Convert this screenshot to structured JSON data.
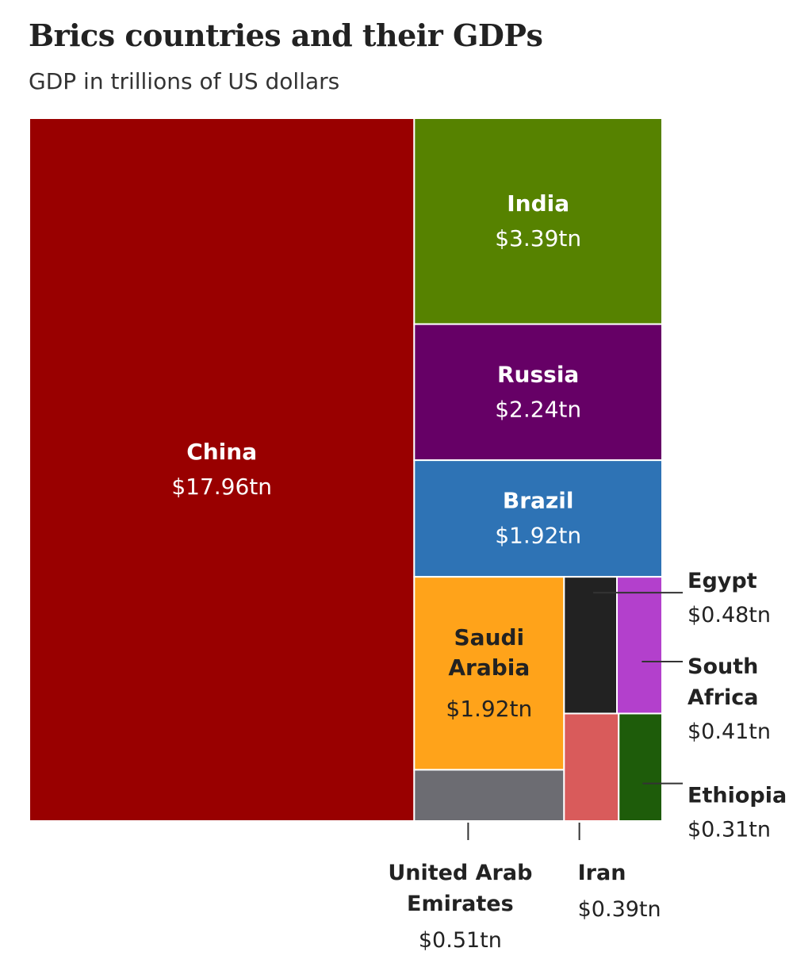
{
  "header": {
    "title": "Brics countries and their GDPs",
    "subtitle": "GDP in trillions of US dollars"
  },
  "chart_data": {
    "type": "treemap",
    "title": "Brics countries and their GDPs",
    "subtitle": "GDP in trillions of US dollars",
    "unit": "trillions of US dollars",
    "series": [
      {
        "name": "China",
        "value": 17.96,
        "label": "$17.96tn",
        "color": "#990000"
      },
      {
        "name": "India",
        "value": 3.39,
        "label": "$3.39tn",
        "color": "#568200"
      },
      {
        "name": "Russia",
        "value": 2.24,
        "label": "$2.24tn",
        "color": "#660066"
      },
      {
        "name": "Brazil",
        "value": 1.92,
        "label": "$1.92tn",
        "color": "#2e73b5"
      },
      {
        "name": "Saudi Arabia",
        "value": 1.92,
        "label": "$1.92tn",
        "color": "#ffa31a"
      },
      {
        "name": "United Arab Emirates",
        "value": 0.51,
        "label": "$0.51tn",
        "color": "#6c6c72"
      },
      {
        "name": "Egypt",
        "value": 0.48,
        "label": "$0.48tn",
        "color": "#222222"
      },
      {
        "name": "South Africa",
        "value": 0.41,
        "label": "$0.41tn",
        "color": "#b340cc"
      },
      {
        "name": "Iran",
        "value": 0.39,
        "label": "$0.39tn",
        "color": "#d95b5b"
      },
      {
        "name": "Ethiopia",
        "value": 0.31,
        "label": "$0.31tn",
        "color": "#1e5c0a"
      }
    ]
  }
}
